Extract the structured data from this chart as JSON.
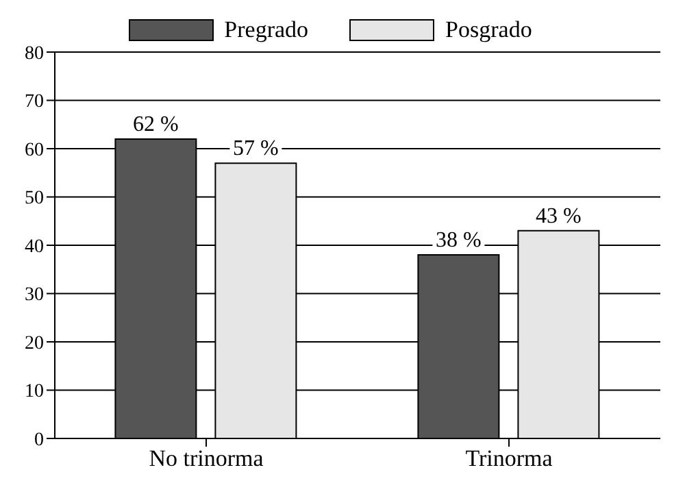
{
  "chart_data": {
    "type": "bar",
    "categories": [
      "No trinorma",
      "Trinorma"
    ],
    "series": [
      {
        "name": "Pregrado",
        "color": "#555555",
        "values": [
          62,
          38
        ],
        "value_labels": [
          "62 %",
          "38 %"
        ]
      },
      {
        "name": "Posgrado",
        "color": "#e6e6e6",
        "values": [
          57,
          43
        ],
        "value_labels": [
          "57 %",
          "43 %"
        ]
      }
    ],
    "ylim": [
      0,
      80
    ],
    "yticks": [
      0,
      10,
      20,
      30,
      40,
      50,
      60,
      70,
      80
    ],
    "grid": "y",
    "legend": "top"
  }
}
